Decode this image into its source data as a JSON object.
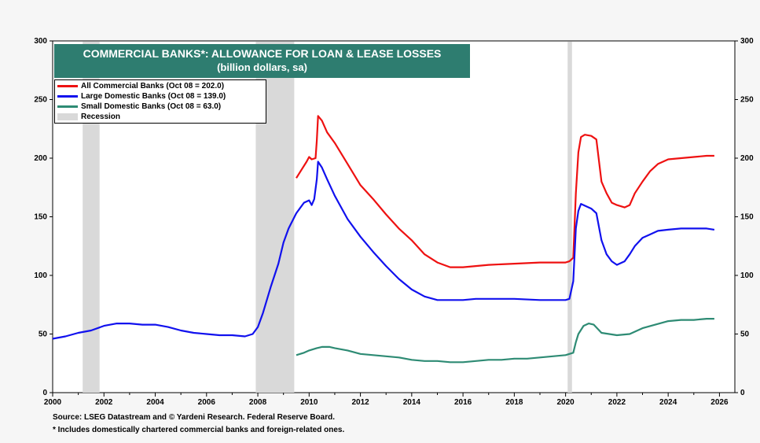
{
  "chart_data": {
    "type": "line",
    "title": "COMMERCIAL BANKS*: ALLOWANCE FOR LOAN & LEASE LOSSES",
    "subtitle": "(billion dollars, sa)",
    "xlim": [
      2000,
      2026.6
    ],
    "ylim": [
      0,
      300
    ],
    "x_ticks": [
      "2000",
      "2002",
      "2004",
      "2006",
      "2008",
      "2010",
      "2012",
      "2014",
      "2016",
      "2018",
      "2020",
      "2022",
      "2024",
      "2026"
    ],
    "y_ticks": [
      "0",
      "50",
      "100",
      "150",
      "200",
      "250",
      "300"
    ],
    "legend": {
      "all": "All Commercial Banks (Oct 08 = 202.0)",
      "large": "Large Domestic Banks (Oct 08 = 139.0)",
      "small": "Small Domestic Banks (Oct 08 = 63.0)",
      "recession": "Recession"
    },
    "recessions": [
      [
        2001.17,
        2001.83
      ],
      [
        2007.92,
        2009.42
      ],
      [
        2020.08,
        2020.25
      ]
    ],
    "series": [
      {
        "name": "All Commercial Banks",
        "color": "#ee1111",
        "x": [
          2009.5,
          2009.7,
          2009.9,
          2010.0,
          2010.1,
          2010.25,
          2010.3,
          2010.35,
          2010.5,
          2010.7,
          2011.0,
          2011.5,
          2012.0,
          2012.5,
          2013.0,
          2013.5,
          2014.0,
          2014.5,
          2015.0,
          2015.5,
          2016.0,
          2016.5,
          2017.0,
          2018.0,
          2019.0,
          2019.5,
          2020.0,
          2020.15,
          2020.3,
          2020.4,
          2020.5,
          2020.6,
          2020.75,
          2021.0,
          2021.2,
          2021.4,
          2021.6,
          2021.8,
          2022.0,
          2022.3,
          2022.5,
          2022.7,
          2023.0,
          2023.3,
          2023.6,
          2024.0,
          2024.5,
          2025.0,
          2025.5,
          2025.8
        ],
        "values": [
          183,
          190,
          197,
          201,
          199,
          200,
          215,
          236,
          232,
          222,
          213,
          195,
          177,
          165,
          152,
          140,
          130,
          118,
          111,
          107,
          107,
          108,
          109,
          110,
          111,
          111,
          111,
          112,
          115,
          170,
          205,
          218,
          220,
          219,
          216,
          180,
          170,
          162,
          160,
          158,
          160,
          170,
          180,
          189,
          195,
          199,
          200,
          201,
          202,
          202
        ]
      },
      {
        "name": "Large Domestic Banks",
        "color": "#1111ee",
        "x": [
          2000.0,
          2000.5,
          2001.0,
          2001.5,
          2002.0,
          2002.5,
          2003.0,
          2003.5,
          2004.0,
          2004.5,
          2005.0,
          2005.5,
          2006.0,
          2006.5,
          2007.0,
          2007.5,
          2007.8,
          2008.0,
          2008.2,
          2008.5,
          2008.8,
          2009.0,
          2009.2,
          2009.5,
          2009.8,
          2010.0,
          2010.1,
          2010.2,
          2010.3,
          2010.35,
          2010.5,
          2010.7,
          2011.0,
          2011.5,
          2012.0,
          2012.5,
          2013.0,
          2013.5,
          2014.0,
          2014.5,
          2015.0,
          2015.5,
          2016.0,
          2016.5,
          2017.0,
          2018.0,
          2019.0,
          2019.5,
          2020.0,
          2020.15,
          2020.3,
          2020.4,
          2020.5,
          2020.6,
          2020.8,
          2021.0,
          2021.2,
          2021.4,
          2021.6,
          2021.8,
          2022.0,
          2022.3,
          2022.5,
          2022.7,
          2023.0,
          2023.3,
          2023.6,
          2024.0,
          2024.5,
          2025.0,
          2025.5,
          2025.8
        ],
        "values": [
          46,
          48,
          51,
          53,
          57,
          59,
          59,
          58,
          58,
          56,
          53,
          51,
          50,
          49,
          49,
          48,
          50,
          56,
          68,
          90,
          110,
          128,
          140,
          153,
          162,
          164,
          160,
          165,
          182,
          197,
          192,
          182,
          168,
          148,
          133,
          120,
          108,
          97,
          88,
          82,
          79,
          79,
          79,
          80,
          80,
          80,
          79,
          79,
          79,
          80,
          95,
          140,
          155,
          161,
          159,
          157,
          153,
          130,
          118,
          112,
          109,
          112,
          118,
          125,
          132,
          135,
          138,
          139,
          140,
          140,
          140,
          139
        ]
      },
      {
        "name": "Small Domestic Banks",
        "color": "#2e8b74",
        "x": [
          2009.5,
          2009.8,
          2010.0,
          2010.3,
          2010.5,
          2010.8,
          2011.0,
          2011.5,
          2012.0,
          2012.5,
          2013.0,
          2013.5,
          2014.0,
          2014.5,
          2015.0,
          2015.5,
          2016.0,
          2016.5,
          2017.0,
          2017.5,
          2018.0,
          2018.5,
          2019.0,
          2019.5,
          2020.0,
          2020.15,
          2020.3,
          2020.4,
          2020.5,
          2020.7,
          2020.9,
          2021.1,
          2021.4,
          2021.7,
          2022.0,
          2022.5,
          2023.0,
          2023.5,
          2024.0,
          2024.5,
          2025.0,
          2025.5,
          2025.8
        ],
        "values": [
          32,
          34,
          36,
          38,
          39,
          39,
          38,
          36,
          33,
          32,
          31,
          30,
          28,
          27,
          27,
          26,
          26,
          27,
          28,
          28,
          29,
          29,
          30,
          31,
          32,
          33,
          34,
          43,
          50,
          57,
          59,
          58,
          51,
          50,
          49,
          50,
          55,
          58,
          61,
          62,
          62,
          63,
          63
        ]
      }
    ]
  },
  "source": "Source: LSEG Datastream and © Yardeni Research. Federal Reserve Board.",
  "footnote": "* Includes domestically chartered commercial banks and foreign-related ones."
}
